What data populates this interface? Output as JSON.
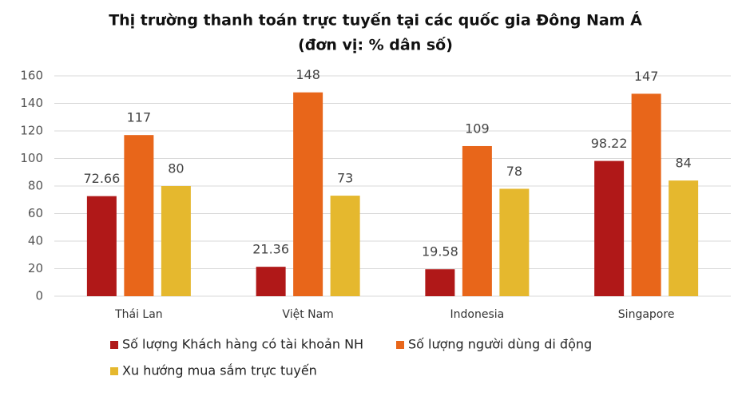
{
  "chart_data": {
    "type": "bar",
    "title": "Thị trường thanh toán trực tuyến tại các quốc gia Đông Nam Á",
    "subtitle": "(đơn vị: % dân số)",
    "categories": [
      "Thái Lan",
      "Việt Nam",
      "Indonesia",
      "Singapore"
    ],
    "series": [
      {
        "name": "Số lượng Khách hàng có tài khoản NH",
        "color": "#b01818",
        "values": [
          72.66,
          21.36,
          19.58,
          98.22
        ]
      },
      {
        "name": "Số lượng người dùng di động",
        "color": "#e8661a",
        "values": [
          117,
          148,
          109,
          147
        ]
      },
      {
        "name": "Xu hướng mua sắm trực tuyến",
        "color": "#e5b82e",
        "values": [
          80,
          73,
          78,
          84
        ]
      }
    ],
    "ylim": [
      0,
      160
    ],
    "yticks": [
      0,
      20,
      40,
      60,
      80,
      100,
      120,
      140,
      160
    ],
    "grid": true,
    "legend": "bottom"
  }
}
